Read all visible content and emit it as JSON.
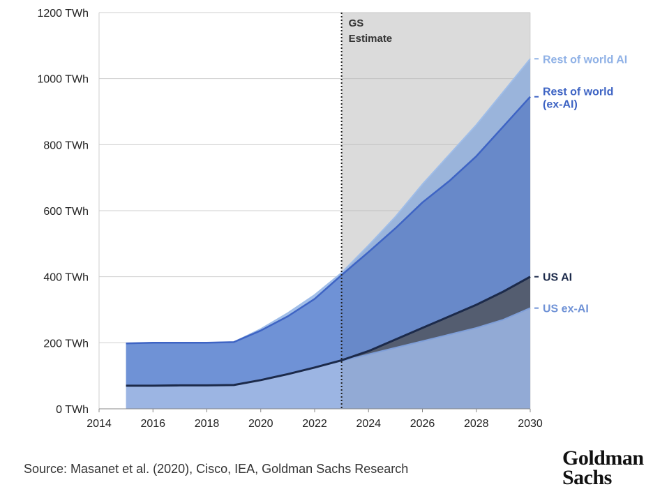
{
  "chart_data": {
    "type": "area",
    "stacked": true,
    "x": [
      2015,
      2016,
      2017,
      2018,
      2019,
      2020,
      2021,
      2022,
      2023,
      2024,
      2025,
      2026,
      2027,
      2028,
      2029,
      2030
    ],
    "xlim": [
      2014,
      2030
    ],
    "xticks": [
      "2014",
      "2016",
      "2018",
      "2020",
      "2022",
      "2024",
      "2026",
      "2028",
      "2030"
    ],
    "ylim": [
      0,
      1200
    ],
    "yticks": [
      "0 TWh",
      "200 TWh",
      "400 TWh",
      "600 TWh",
      "800 TWh",
      "1000 TWh",
      "1200 TWh"
    ],
    "grid": "horizontal",
    "annotation": {
      "text_line1": "GS",
      "text_line2": "Estimate",
      "x": 2023
    },
    "series": [
      {
        "name": "US ex-AI",
        "color": "#9cb5e3",
        "values": [
          70,
          70,
          71,
          71,
          72,
          87,
          105,
          125,
          145,
          165,
          185,
          205,
          225,
          245,
          270,
          305
        ]
      },
      {
        "name": "US AI",
        "color": "#5a6377",
        "line_color": "#1c2a4a",
        "values": [
          0,
          0,
          0,
          0,
          0,
          0,
          0,
          0,
          2,
          10,
          25,
          40,
          55,
          70,
          85,
          95
        ]
      },
      {
        "name": "Rest of world\n(ex-AI)",
        "color": "#6f92d6",
        "line_color": "#3e64c4",
        "values": [
          128,
          130,
          129,
          129,
          130,
          150,
          175,
          208,
          258,
          300,
          337,
          380,
          410,
          450,
          500,
          545
        ]
      },
      {
        "name": "Rest of world AI",
        "color": "#a4c0e9",
        "values": [
          0,
          0,
          0,
          0,
          0,
          5,
          10,
          12,
          7,
          20,
          35,
          55,
          80,
          95,
          105,
          115
        ]
      }
    ]
  },
  "labels": {
    "row_ai": "Rest of world AI",
    "row_exai_1": "Rest of world",
    "row_exai_2": "(ex-AI)",
    "us_ai": "US AI",
    "us_exai": "US ex-AI"
  },
  "source": "Source: Masanet et al. (2020), Cisco, IEA, Goldman Sachs Research",
  "logo_line1": "Goldman",
  "logo_line2": "Sachs",
  "colors": {
    "forecast_shade": "#e9e9e9",
    "row_ai_label": "#8fb1e6",
    "row_exai_label": "#3e64c4",
    "us_ai_label": "#1c2a4a",
    "us_exai_label": "#6f92d6"
  }
}
